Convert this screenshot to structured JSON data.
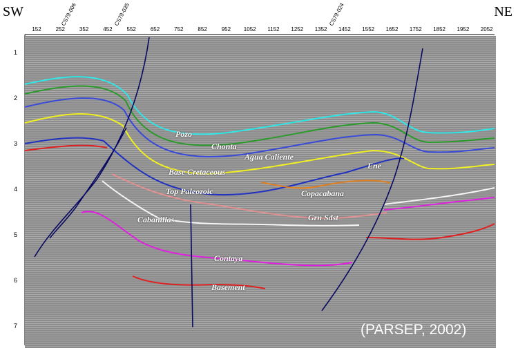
{
  "corners": {
    "left": "SW",
    "right": "NE"
  },
  "x_ticks": [
    "152",
    "252",
    "352",
    "452",
    "552",
    "652",
    "752",
    "852",
    "952",
    "1052",
    "1152",
    "1252",
    "1352",
    "1452",
    "1552",
    "1652",
    "1752",
    "1852",
    "1952",
    "2052"
  ],
  "y_ticks": [
    "1",
    "2",
    "3",
    "4",
    "5",
    "6",
    "7"
  ],
  "wells": [
    "CS79-006",
    "CS79-035",
    "CS79-024"
  ],
  "horizons": {
    "pozo": "Pozo",
    "chonta": "Chonta",
    "agua_caliente": "Agua Caliente",
    "ene": "Ene",
    "base_cretaceous": "Base Cretaceous",
    "top_paleozoic": "Top Paleozoic",
    "copacabana": "Copacabana",
    "cabanillas": "Cabanillas",
    "grn_sdst": "Grn Sdst",
    "contaya": "Contaya",
    "basement": "Basement"
  },
  "colors": {
    "pozo": "#2ee6e6",
    "chonta": "#2a9a2a",
    "agua_caliente": "#3a4ad8",
    "ene": "#2030c0",
    "base_cretaceous": "#f0f020",
    "top_paleozoic": "#1a1aa0",
    "copacabana": "#e08020",
    "cabanillas": "#f4f4f4",
    "grn_sdst": "#e09090",
    "contaya": "#e020e0",
    "basement": "#e02020",
    "fault": "#0a0a60",
    "background": "#8f8f8f"
  },
  "citation": "(PARSEP, 2002)"
}
